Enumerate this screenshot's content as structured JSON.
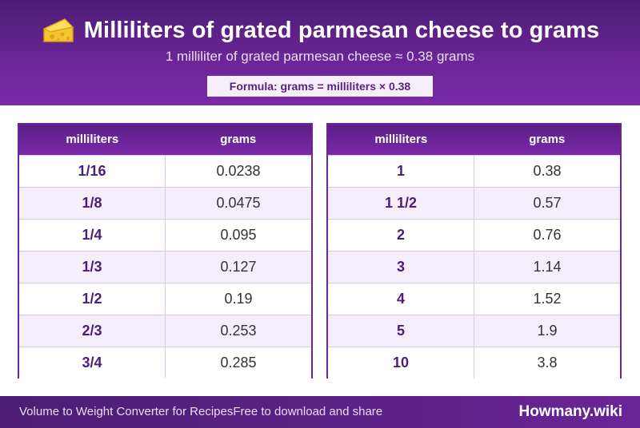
{
  "header": {
    "title": "Milliliters of grated parmesan cheese to grams",
    "icon": "cheese-icon",
    "subtitle": "1 milliliter of grated parmesan cheese ≈ 0.38 grams",
    "formula": "Formula: grams = milliliters × 0.38"
  },
  "tables": {
    "left": {
      "col_ml": "milliliters",
      "col_g": "grams",
      "rows": [
        {
          "ml": "1/16",
          "g": "0.0238"
        },
        {
          "ml": "1/8",
          "g": "0.0475"
        },
        {
          "ml": "1/4",
          "g": "0.095"
        },
        {
          "ml": "1/3",
          "g": "0.127"
        },
        {
          "ml": "1/2",
          "g": "0.19"
        },
        {
          "ml": "2/3",
          "g": "0.253"
        },
        {
          "ml": "3/4",
          "g": "0.285"
        }
      ]
    },
    "right": {
      "col_ml": "milliliters",
      "col_g": "grams",
      "rows": [
        {
          "ml": "1",
          "g": "0.38"
        },
        {
          "ml": "1 1/2",
          "g": "0.57"
        },
        {
          "ml": "2",
          "g": "0.76"
        },
        {
          "ml": "3",
          "g": "1.14"
        },
        {
          "ml": "4",
          "g": "1.52"
        },
        {
          "ml": "5",
          "g": "1.9"
        },
        {
          "ml": "10",
          "g": "3.8"
        }
      ]
    }
  },
  "footer": {
    "left_text": "Volume to Weight Converter for RecipesFree to download and share",
    "brand": "Howmany.wiki"
  },
  "colors": {
    "header_purple": "#6a2596",
    "dark_purple": "#4c1d74",
    "row_alt": "#f4eefa"
  }
}
